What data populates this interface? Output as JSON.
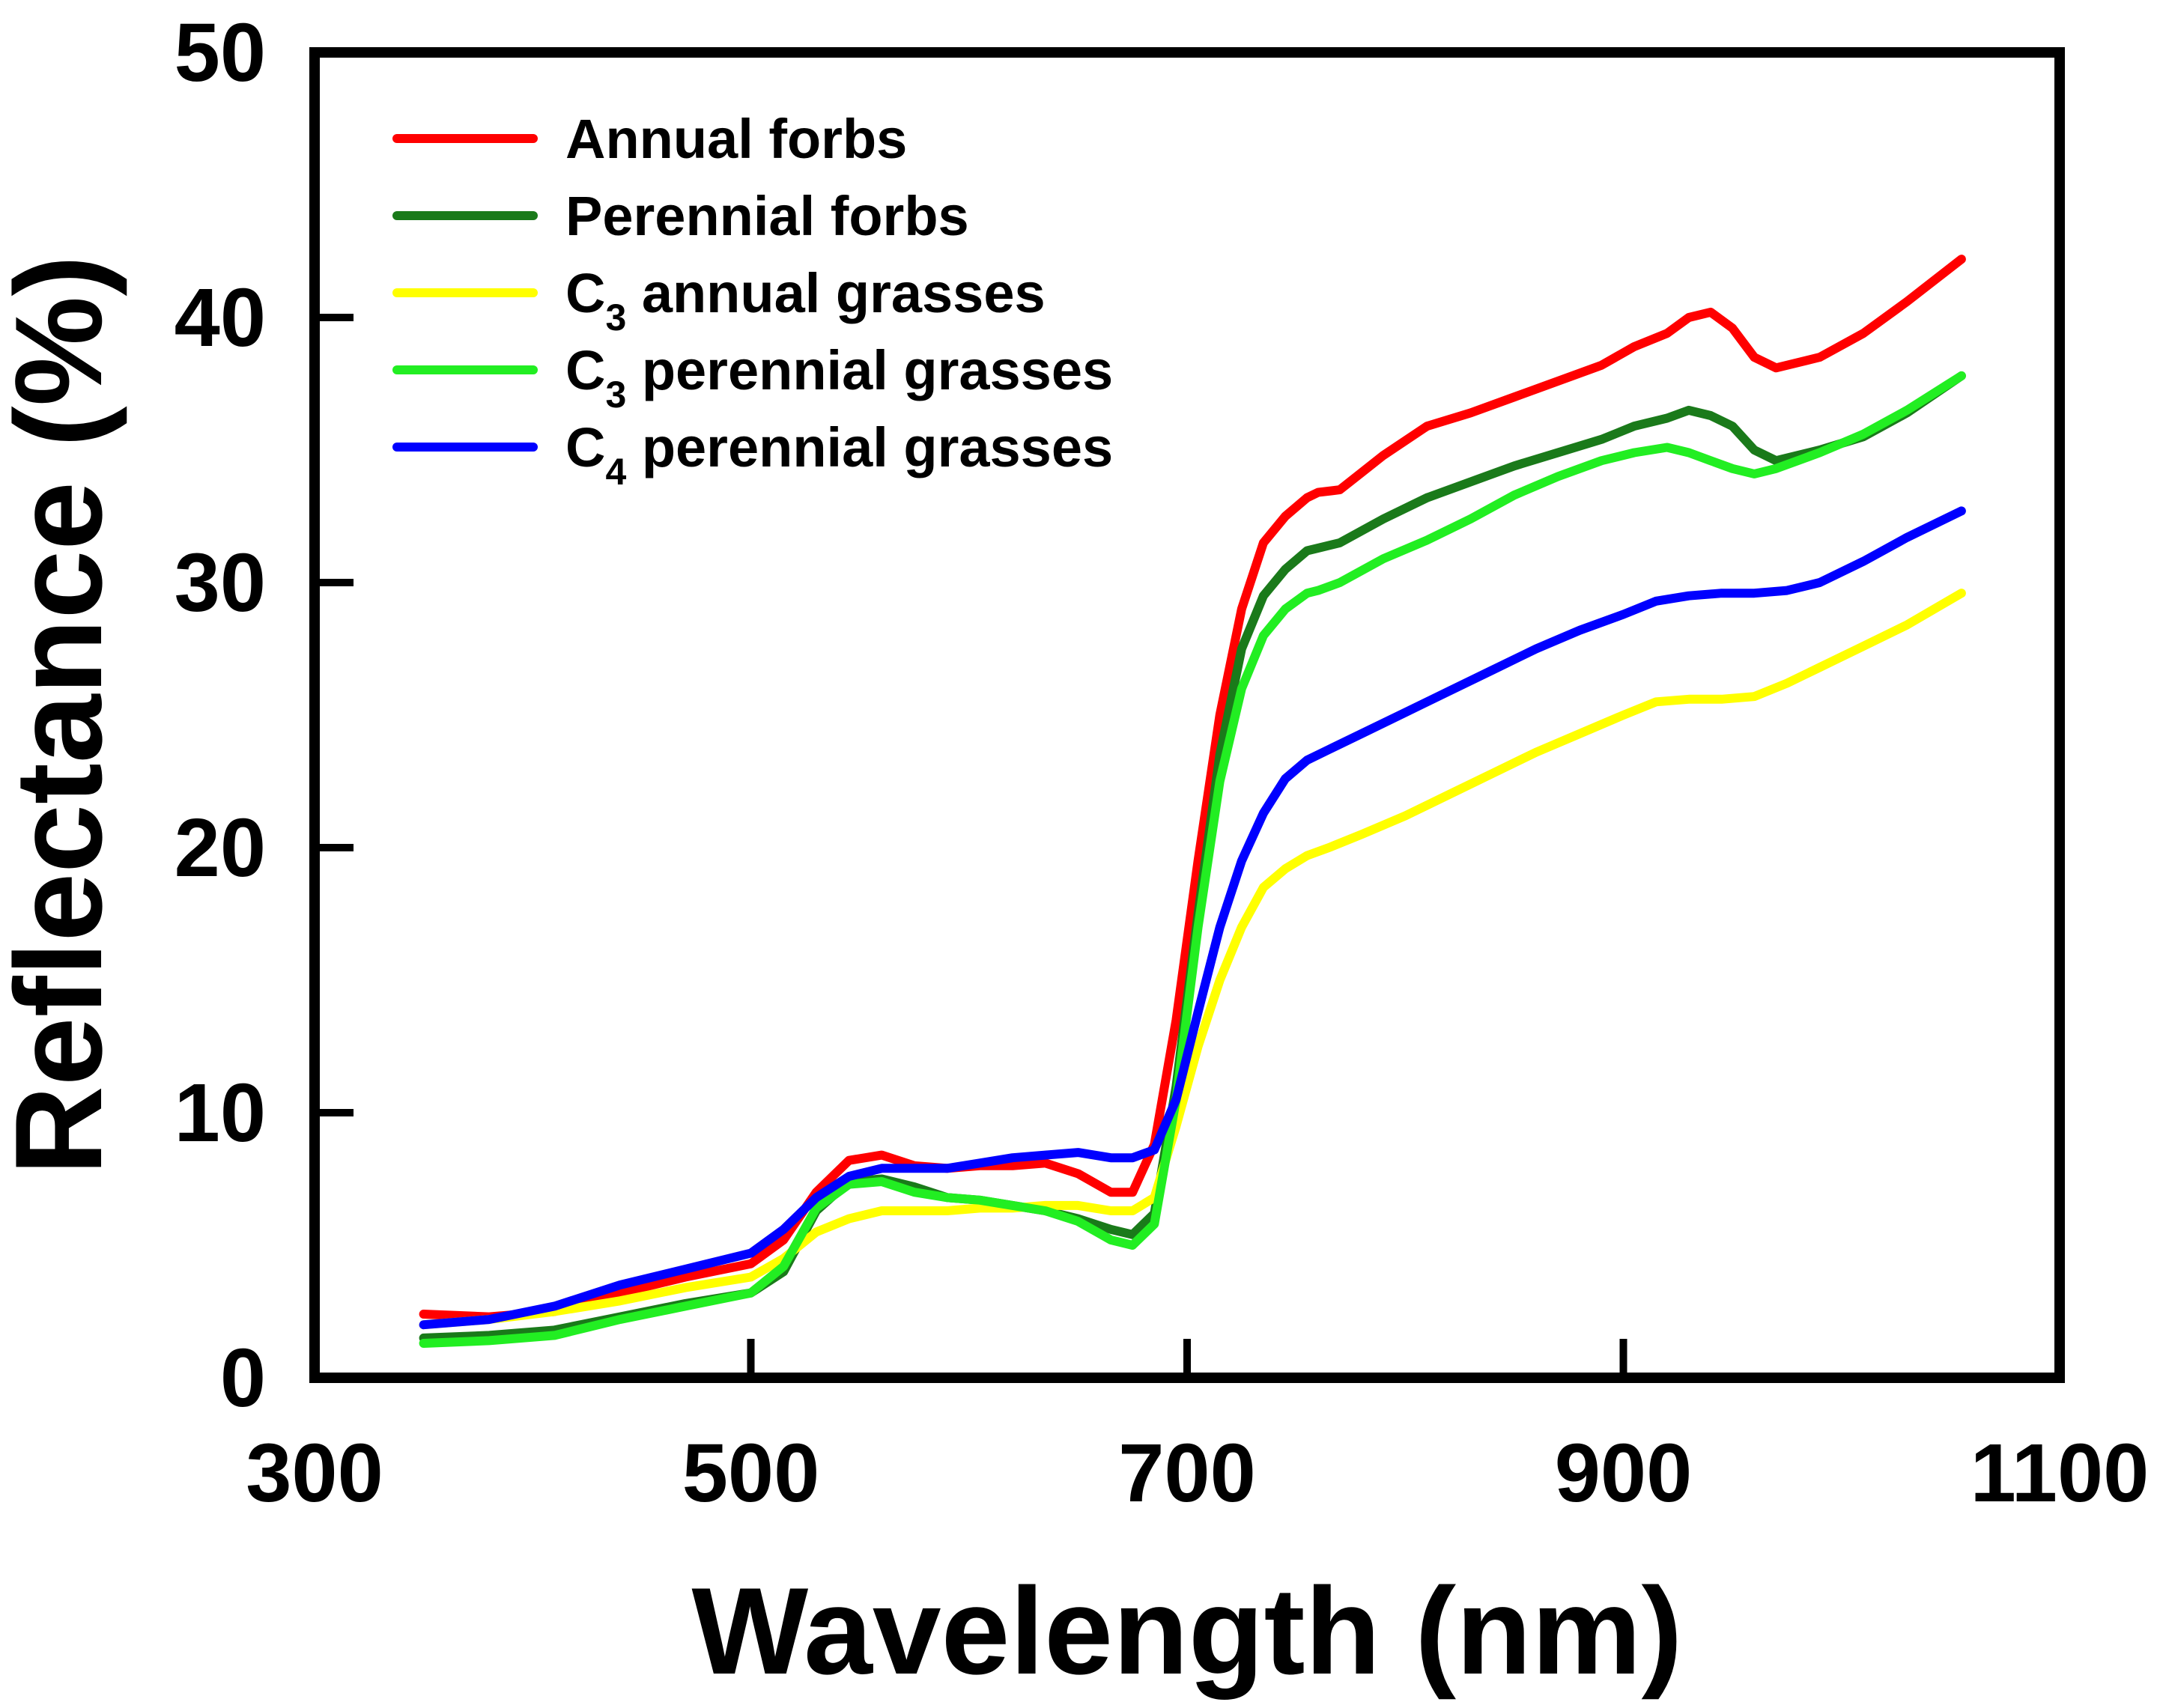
{
  "chart_data": {
    "type": "line",
    "title": "",
    "xlabel": "Wavelength (nm)",
    "ylabel": "Reflectance (%)",
    "xlim": [
      300,
      1100
    ],
    "ylim": [
      0,
      50
    ],
    "xticks": [
      300,
      500,
      700,
      900,
      1100
    ],
    "yticks": [
      0,
      10,
      20,
      30,
      40,
      50
    ],
    "grid": false,
    "legend_position": "top-left",
    "series": [
      {
        "name": "Annual forbs",
        "legend": {
          "prefix": "Annual forbs",
          "sub": "",
          "suffix": ""
        },
        "color": "#ff0000",
        "x": [
          350,
          380,
          410,
          440,
          470,
          500,
          515,
          530,
          545,
          560,
          575,
          590,
          605,
          620,
          635,
          650,
          665,
          675,
          685,
          695,
          705,
          715,
          725,
          735,
          745,
          755,
          760,
          770,
          790,
          810,
          830,
          850,
          870,
          890,
          905,
          920,
          930,
          940,
          950,
          960,
          970,
          990,
          1010,
          1030,
          1055
        ],
        "y": [
          2.4,
          2.3,
          2.5,
          3.2,
          3.8,
          4.3,
          5.2,
          7.0,
          8.2,
          8.4,
          8.0,
          7.9,
          8.0,
          8.0,
          8.1,
          7.7,
          7.0,
          7.0,
          8.8,
          13.5,
          19.5,
          25.0,
          29.0,
          31.5,
          32.5,
          33.2,
          33.4,
          33.5,
          34.8,
          35.9,
          36.4,
          37.0,
          37.6,
          38.2,
          38.9,
          39.4,
          40.0,
          40.2,
          39.6,
          38.5,
          38.1,
          38.5,
          39.4,
          40.6,
          42.2
        ]
      },
      {
        "name": "Perennial forbs",
        "legend": {
          "prefix": "Perennial forbs",
          "sub": "",
          "suffix": ""
        },
        "color": "#1a7a1a",
        "x": [
          350,
          380,
          410,
          440,
          470,
          500,
          515,
          530,
          545,
          560,
          575,
          590,
          605,
          620,
          635,
          650,
          665,
          675,
          685,
          695,
          705,
          715,
          725,
          735,
          745,
          755,
          760,
          770,
          790,
          810,
          830,
          850,
          870,
          890,
          905,
          920,
          930,
          940,
          950,
          960,
          970,
          990,
          1010,
          1030,
          1055
        ],
        "y": [
          1.5,
          1.6,
          1.8,
          2.3,
          2.8,
          3.2,
          4.0,
          6.3,
          7.4,
          7.5,
          7.2,
          6.8,
          6.7,
          6.5,
          6.3,
          6.0,
          5.6,
          5.4,
          6.2,
          11.0,
          17.5,
          23.5,
          27.5,
          29.5,
          30.5,
          31.2,
          31.3,
          31.5,
          32.4,
          33.2,
          33.8,
          34.4,
          34.9,
          35.4,
          35.9,
          36.2,
          36.5,
          36.3,
          35.9,
          35.0,
          34.6,
          35.0,
          35.5,
          36.4,
          37.8
        ]
      },
      {
        "name": "C3 annual grasses",
        "legend": {
          "prefix": "C",
          "sub": "3",
          "suffix": " annual grasses"
        },
        "color": "#ffff00",
        "x": [
          350,
          380,
          410,
          440,
          470,
          500,
          515,
          530,
          545,
          560,
          575,
          590,
          605,
          620,
          635,
          650,
          665,
          675,
          685,
          695,
          705,
          715,
          725,
          735,
          745,
          755,
          765,
          780,
          800,
          820,
          840,
          860,
          880,
          900,
          915,
          930,
          945,
          960,
          975,
          990,
          1010,
          1030,
          1055
        ],
        "y": [
          2.0,
          2.2,
          2.5,
          2.9,
          3.4,
          3.8,
          4.5,
          5.5,
          6.0,
          6.3,
          6.3,
          6.3,
          6.4,
          6.4,
          6.5,
          6.5,
          6.3,
          6.3,
          6.8,
          9.5,
          12.5,
          15.0,
          17.0,
          18.5,
          19.2,
          19.7,
          20.0,
          20.5,
          21.2,
          22.0,
          22.8,
          23.6,
          24.3,
          25.0,
          25.5,
          25.6,
          25.6,
          25.7,
          26.2,
          26.8,
          27.6,
          28.4,
          29.6
        ]
      },
      {
        "name": "C3 perennial grasses",
        "legend": {
          "prefix": "C",
          "sub": "3",
          "suffix": " perennial grasses"
        },
        "color": "#22ee22",
        "x": [
          350,
          380,
          410,
          440,
          470,
          500,
          515,
          530,
          545,
          560,
          575,
          590,
          605,
          620,
          635,
          650,
          665,
          675,
          685,
          695,
          705,
          715,
          725,
          735,
          745,
          755,
          760,
          770,
          790,
          810,
          830,
          850,
          870,
          890,
          905,
          920,
          930,
          940,
          950,
          960,
          970,
          990,
          1010,
          1030,
          1055
        ],
        "y": [
          1.3,
          1.4,
          1.6,
          2.2,
          2.7,
          3.2,
          4.2,
          6.4,
          7.3,
          7.4,
          7.0,
          6.8,
          6.7,
          6.5,
          6.3,
          5.9,
          5.2,
          5.0,
          5.8,
          10.5,
          17.0,
          22.5,
          26.0,
          28.0,
          29.0,
          29.6,
          29.7,
          30.0,
          30.9,
          31.6,
          32.4,
          33.3,
          34.0,
          34.6,
          34.9,
          35.1,
          34.9,
          34.6,
          34.3,
          34.1,
          34.3,
          34.9,
          35.6,
          36.5,
          37.8
        ]
      },
      {
        "name": "C4 perennial grasses",
        "legend": {
          "prefix": "C",
          "sub": "4",
          "suffix": " perennial grasses"
        },
        "color": "#0000ff",
        "x": [
          350,
          380,
          410,
          440,
          470,
          500,
          515,
          530,
          545,
          560,
          575,
          590,
          605,
          620,
          635,
          650,
          665,
          675,
          685,
          695,
          705,
          715,
          725,
          735,
          745,
          755,
          765,
          780,
          800,
          820,
          840,
          860,
          880,
          900,
          915,
          930,
          945,
          960,
          975,
          990,
          1010,
          1030,
          1055
        ],
        "y": [
          2.0,
          2.2,
          2.7,
          3.5,
          4.1,
          4.7,
          5.6,
          6.8,
          7.6,
          7.9,
          7.9,
          7.9,
          8.1,
          8.3,
          8.4,
          8.5,
          8.3,
          8.3,
          8.6,
          10.5,
          13.8,
          17.0,
          19.5,
          21.3,
          22.6,
          23.3,
          23.7,
          24.3,
          25.1,
          25.9,
          26.7,
          27.5,
          28.2,
          28.8,
          29.3,
          29.5,
          29.6,
          29.6,
          29.7,
          30.0,
          30.8,
          31.7,
          32.7
        ]
      }
    ]
  }
}
